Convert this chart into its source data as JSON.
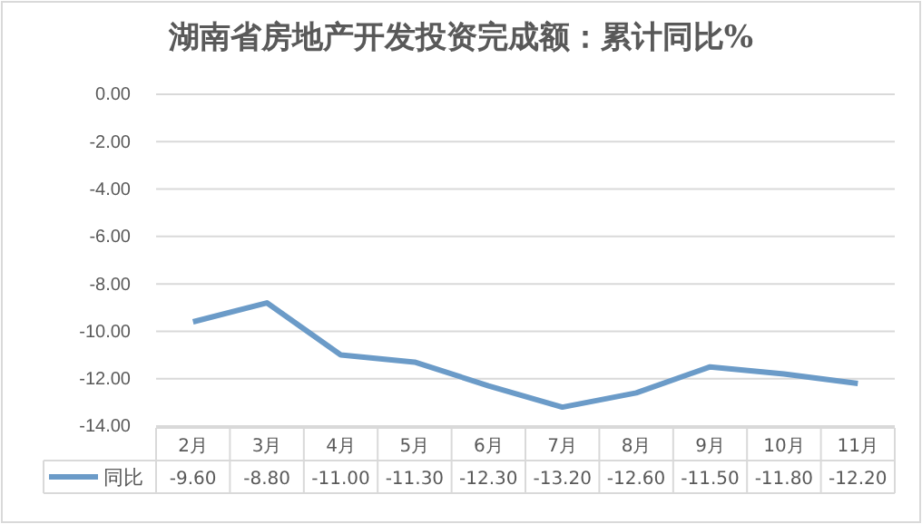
{
  "chart_data": {
    "type": "line",
    "title": "湖南省房地产开发投资完成额：累计同比%",
    "categories": [
      "2月",
      "3月",
      "4月",
      "5月",
      "6月",
      "7月",
      "8月",
      "9月",
      "10月",
      "11月"
    ],
    "series": [
      {
        "name": "同比",
        "color": "#6b9bc8",
        "values": [
          -9.6,
          -8.8,
          -11.0,
          -11.3,
          -12.3,
          -13.2,
          -12.6,
          -11.5,
          -11.8,
          -12.2
        ],
        "value_labels": [
          "-9.60",
          "-8.80",
          "-11.00",
          "-11.30",
          "-12.30",
          "-13.20",
          "-12.60",
          "-11.50",
          "-11.80",
          "-12.20"
        ]
      }
    ],
    "ylim": [
      -14,
      0
    ],
    "yticks": [
      {
        "value": -14,
        "label": "-14.00"
      },
      {
        "value": -12,
        "label": "-12.00"
      },
      {
        "value": -10,
        "label": "-10.00"
      },
      {
        "value": -8,
        "label": "-8.00"
      },
      {
        "value": -6,
        "label": "-6.00"
      },
      {
        "value": -4,
        "label": "-4.00"
      },
      {
        "value": -2,
        "label": "-2.00"
      },
      {
        "value": 0,
        "label": "0.00"
      }
    ],
    "grid": "y",
    "legend": "bottom",
    "marker": "none",
    "line_style": "solid"
  }
}
